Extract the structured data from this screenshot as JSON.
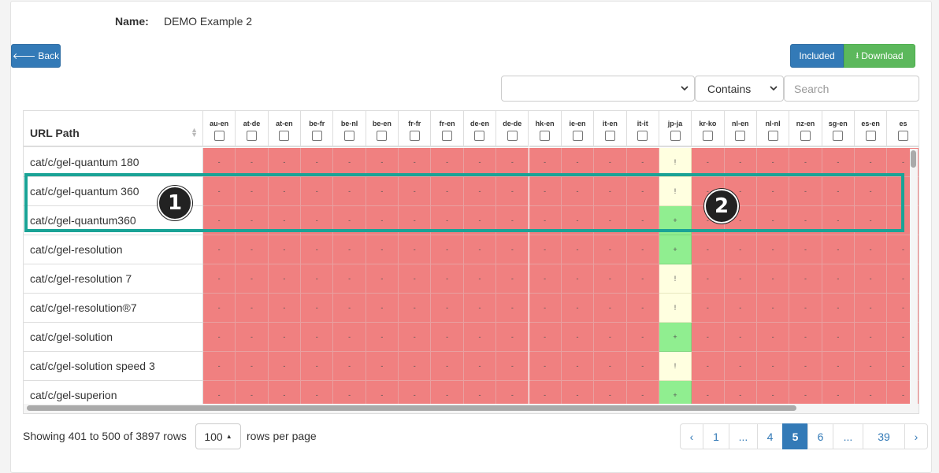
{
  "header": {
    "name_label": "Name:",
    "name_value": "DEMO Example 2"
  },
  "toolbar": {
    "back_label": "Back",
    "included_label": "Included",
    "download_label": "Download"
  },
  "filters": {
    "column_select_value": "",
    "operator_select_value": "Contains",
    "search_placeholder": "Search"
  },
  "table": {
    "path_header": "URL Path",
    "columns": [
      "au-en",
      "at-de",
      "at-en",
      "be-fr",
      "be-nl",
      "be-en",
      "fr-fr",
      "fr-en",
      "de-en",
      "de-de",
      "hk-en",
      "ie-en",
      "it-en",
      "it-it",
      "jp-ja",
      "kr-ko",
      "nl-en",
      "nl-nl",
      "nz-en",
      "sg-en",
      "es-en",
      "es"
    ],
    "rows": [
      {
        "path": "cat/c/gel-quantum 180",
        "jp": "!",
        "jp_status": "warn"
      },
      {
        "path": "cat/c/gel-quantum 360",
        "jp": "!",
        "jp_status": "warn"
      },
      {
        "path": "cat/c/gel-quantum360",
        "jp": "+",
        "jp_status": "ok"
      },
      {
        "path": "cat/c/gel-resolution",
        "jp": "+",
        "jp_status": "ok"
      },
      {
        "path": "cat/c/gel-resolution 7",
        "jp": "!",
        "jp_status": "warn"
      },
      {
        "path": "cat/c/gel-resolution®7",
        "jp": "!",
        "jp_status": "warn"
      },
      {
        "path": "cat/c/gel-solution",
        "jp": "+",
        "jp_status": "ok"
      },
      {
        "path": "cat/c/gel-solution speed 3",
        "jp": "!",
        "jp_status": "warn"
      },
      {
        "path": "cat/c/gel-superion",
        "jp": "+",
        "jp_status": "ok"
      }
    ],
    "empty_cell": "-",
    "highlight_column": "jp-ja"
  },
  "annotations": {
    "marker1": "1",
    "marker2": "2"
  },
  "footer": {
    "showing_text": "Showing 401 to 500 of 3897 rows",
    "page_size": "100",
    "rows_per_page_text": "rows per page"
  },
  "pagination": {
    "items": [
      {
        "label": "‹",
        "active": false
      },
      {
        "label": "1",
        "active": false
      },
      {
        "label": "...",
        "active": false
      },
      {
        "label": "4",
        "active": false
      },
      {
        "label": "5",
        "active": true
      },
      {
        "label": "6",
        "active": false
      },
      {
        "label": "...",
        "active": false
      },
      {
        "label": "39",
        "active": false
      },
      {
        "label": "›",
        "active": false
      }
    ]
  },
  "colors": {
    "missing": "#f08080",
    "warning": "#ffffe0",
    "present": "#90ee90",
    "highlight": "#1aa396",
    "primary": "#337ab7",
    "success": "#5cb85c"
  },
  "icons": {
    "back": "arrow-left-icon",
    "download": "download-icon",
    "caret": "chevron-down-icon",
    "sort": "sort-icon"
  }
}
